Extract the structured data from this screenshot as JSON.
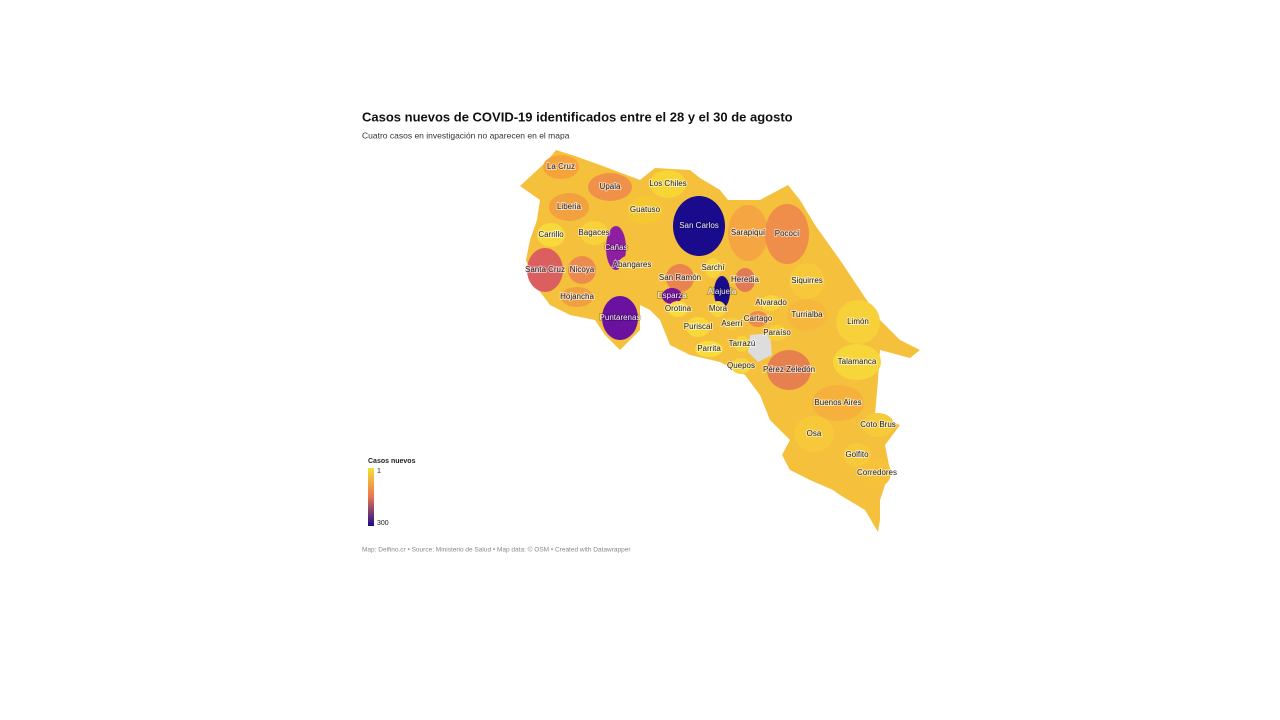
{
  "header": {
    "title": "Casos nuevos de COVID-19 identificados entre el 28 y el 30 de agosto",
    "subtitle": "Cuatro casos en investigación no aparecen en el mapa"
  },
  "legend": {
    "title": "Casos nuevos",
    "min": 1,
    "max": 300,
    "color_min": "#f7e034",
    "color_max": "#1a0a8c"
  },
  "regions": [
    {
      "name": "La Cruz",
      "color": "#f6a33c"
    },
    {
      "name": "Upala",
      "color": "#f0914a"
    },
    {
      "name": "Los Chiles",
      "color": "#f7d534"
    },
    {
      "name": "Liberia",
      "color": "#f3a03e"
    },
    {
      "name": "Guatuso",
      "color": "#f5c730"
    },
    {
      "name": "San Carlos",
      "color": "#1a0a8c"
    },
    {
      "name": "Carrillo",
      "color": "#f8d93a"
    },
    {
      "name": "Bagaces",
      "color": "#f9d13a"
    },
    {
      "name": "Cañas",
      "color": "#8d1fa0"
    },
    {
      "name": "Sarapiquí",
      "color": "#f5a642"
    },
    {
      "name": "Pococí",
      "color": "#ef8d4a"
    },
    {
      "name": "Santa Cruz",
      "color": "#dc5f5f"
    },
    {
      "name": "Nicoya",
      "color": "#ec8b4d"
    },
    {
      "name": "Abangares",
      "color": "#f5c23a"
    },
    {
      "name": "San Ramón",
      "color": "#e9844e"
    },
    {
      "name": "Sarchí",
      "color": "#f7d43a"
    },
    {
      "name": "Heredia",
      "color": "#e27a55"
    },
    {
      "name": "Siquirres",
      "color": "#f7c83a"
    },
    {
      "name": "Hojancha",
      "color": "#f0a040"
    },
    {
      "name": "Esparza",
      "color": "#7a14a0"
    },
    {
      "name": "Alajuela",
      "color": "#1a0a8c"
    },
    {
      "name": "Alvarado",
      "color": "#f7d43a"
    },
    {
      "name": "Orotina",
      "color": "#f8dc3a"
    },
    {
      "name": "Mora",
      "color": "#f7d43a"
    },
    {
      "name": "Turrialba",
      "color": "#f5b83c"
    },
    {
      "name": "Puntarenas",
      "color": "#6b119f"
    },
    {
      "name": "Cartago",
      "color": "#ee8e48"
    },
    {
      "name": "Limón",
      "color": "#f7d03a"
    },
    {
      "name": "Puriscal",
      "color": "#f8d83a"
    },
    {
      "name": "Aserrí",
      "color": "#f7cf3a"
    },
    {
      "name": "Paraíso",
      "color": "#f7cf3a"
    },
    {
      "name": "Tarrazú",
      "color": "#f7d43a"
    },
    {
      "name": "Parrita",
      "color": "#f8dc3a"
    },
    {
      "name": "Talamanca",
      "color": "#f7d63a"
    },
    {
      "name": "Quepos",
      "color": "#f7d43a"
    },
    {
      "name": "Pérez Zeledón",
      "color": "#e6804f"
    },
    {
      "name": "Buenos Aires",
      "color": "#f5b13c"
    },
    {
      "name": "Coto Brus",
      "color": "#f7ca3a"
    },
    {
      "name": "Osa",
      "color": "#f7c83a"
    },
    {
      "name": "Golfito",
      "color": "#f7c83a"
    },
    {
      "name": "Corredores",
      "color": "#f7c23a"
    }
  ],
  "footer": "Map: Delfino.cr • Source: Ministerio de Salud • Map data: © OSM • Created with Datawrapper"
}
